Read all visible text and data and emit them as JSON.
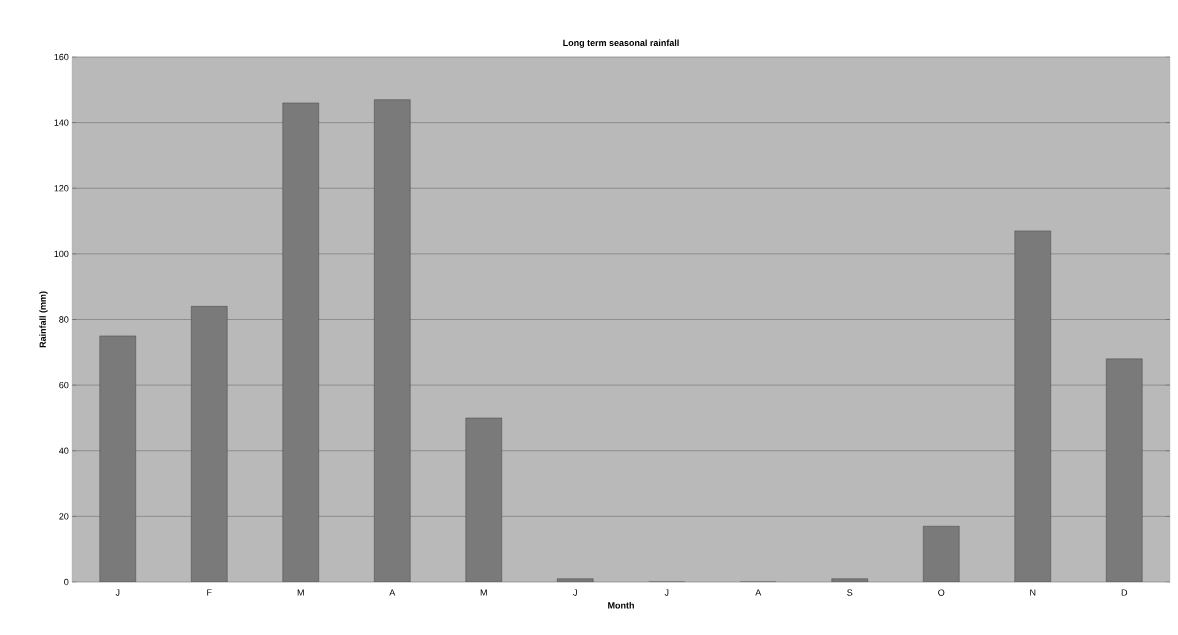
{
  "chart_data": {
    "type": "bar",
    "title": "Long term seasonal rainfall",
    "xlabel": "Month",
    "ylabel": "Rainfall (mm)",
    "categories": [
      "J",
      "F",
      "M",
      "A",
      "M",
      "J",
      "J",
      "A",
      "S",
      "O",
      "N",
      "D"
    ],
    "values": [
      75,
      84,
      146,
      147,
      50,
      1,
      0,
      0,
      1,
      17,
      107,
      68
    ],
    "color": "#7a7a7a",
    "ylim": [
      0,
      160
    ],
    "yticks": [
      0,
      20,
      40,
      60,
      80,
      100,
      120,
      140,
      160
    ],
    "grid": "y"
  }
}
